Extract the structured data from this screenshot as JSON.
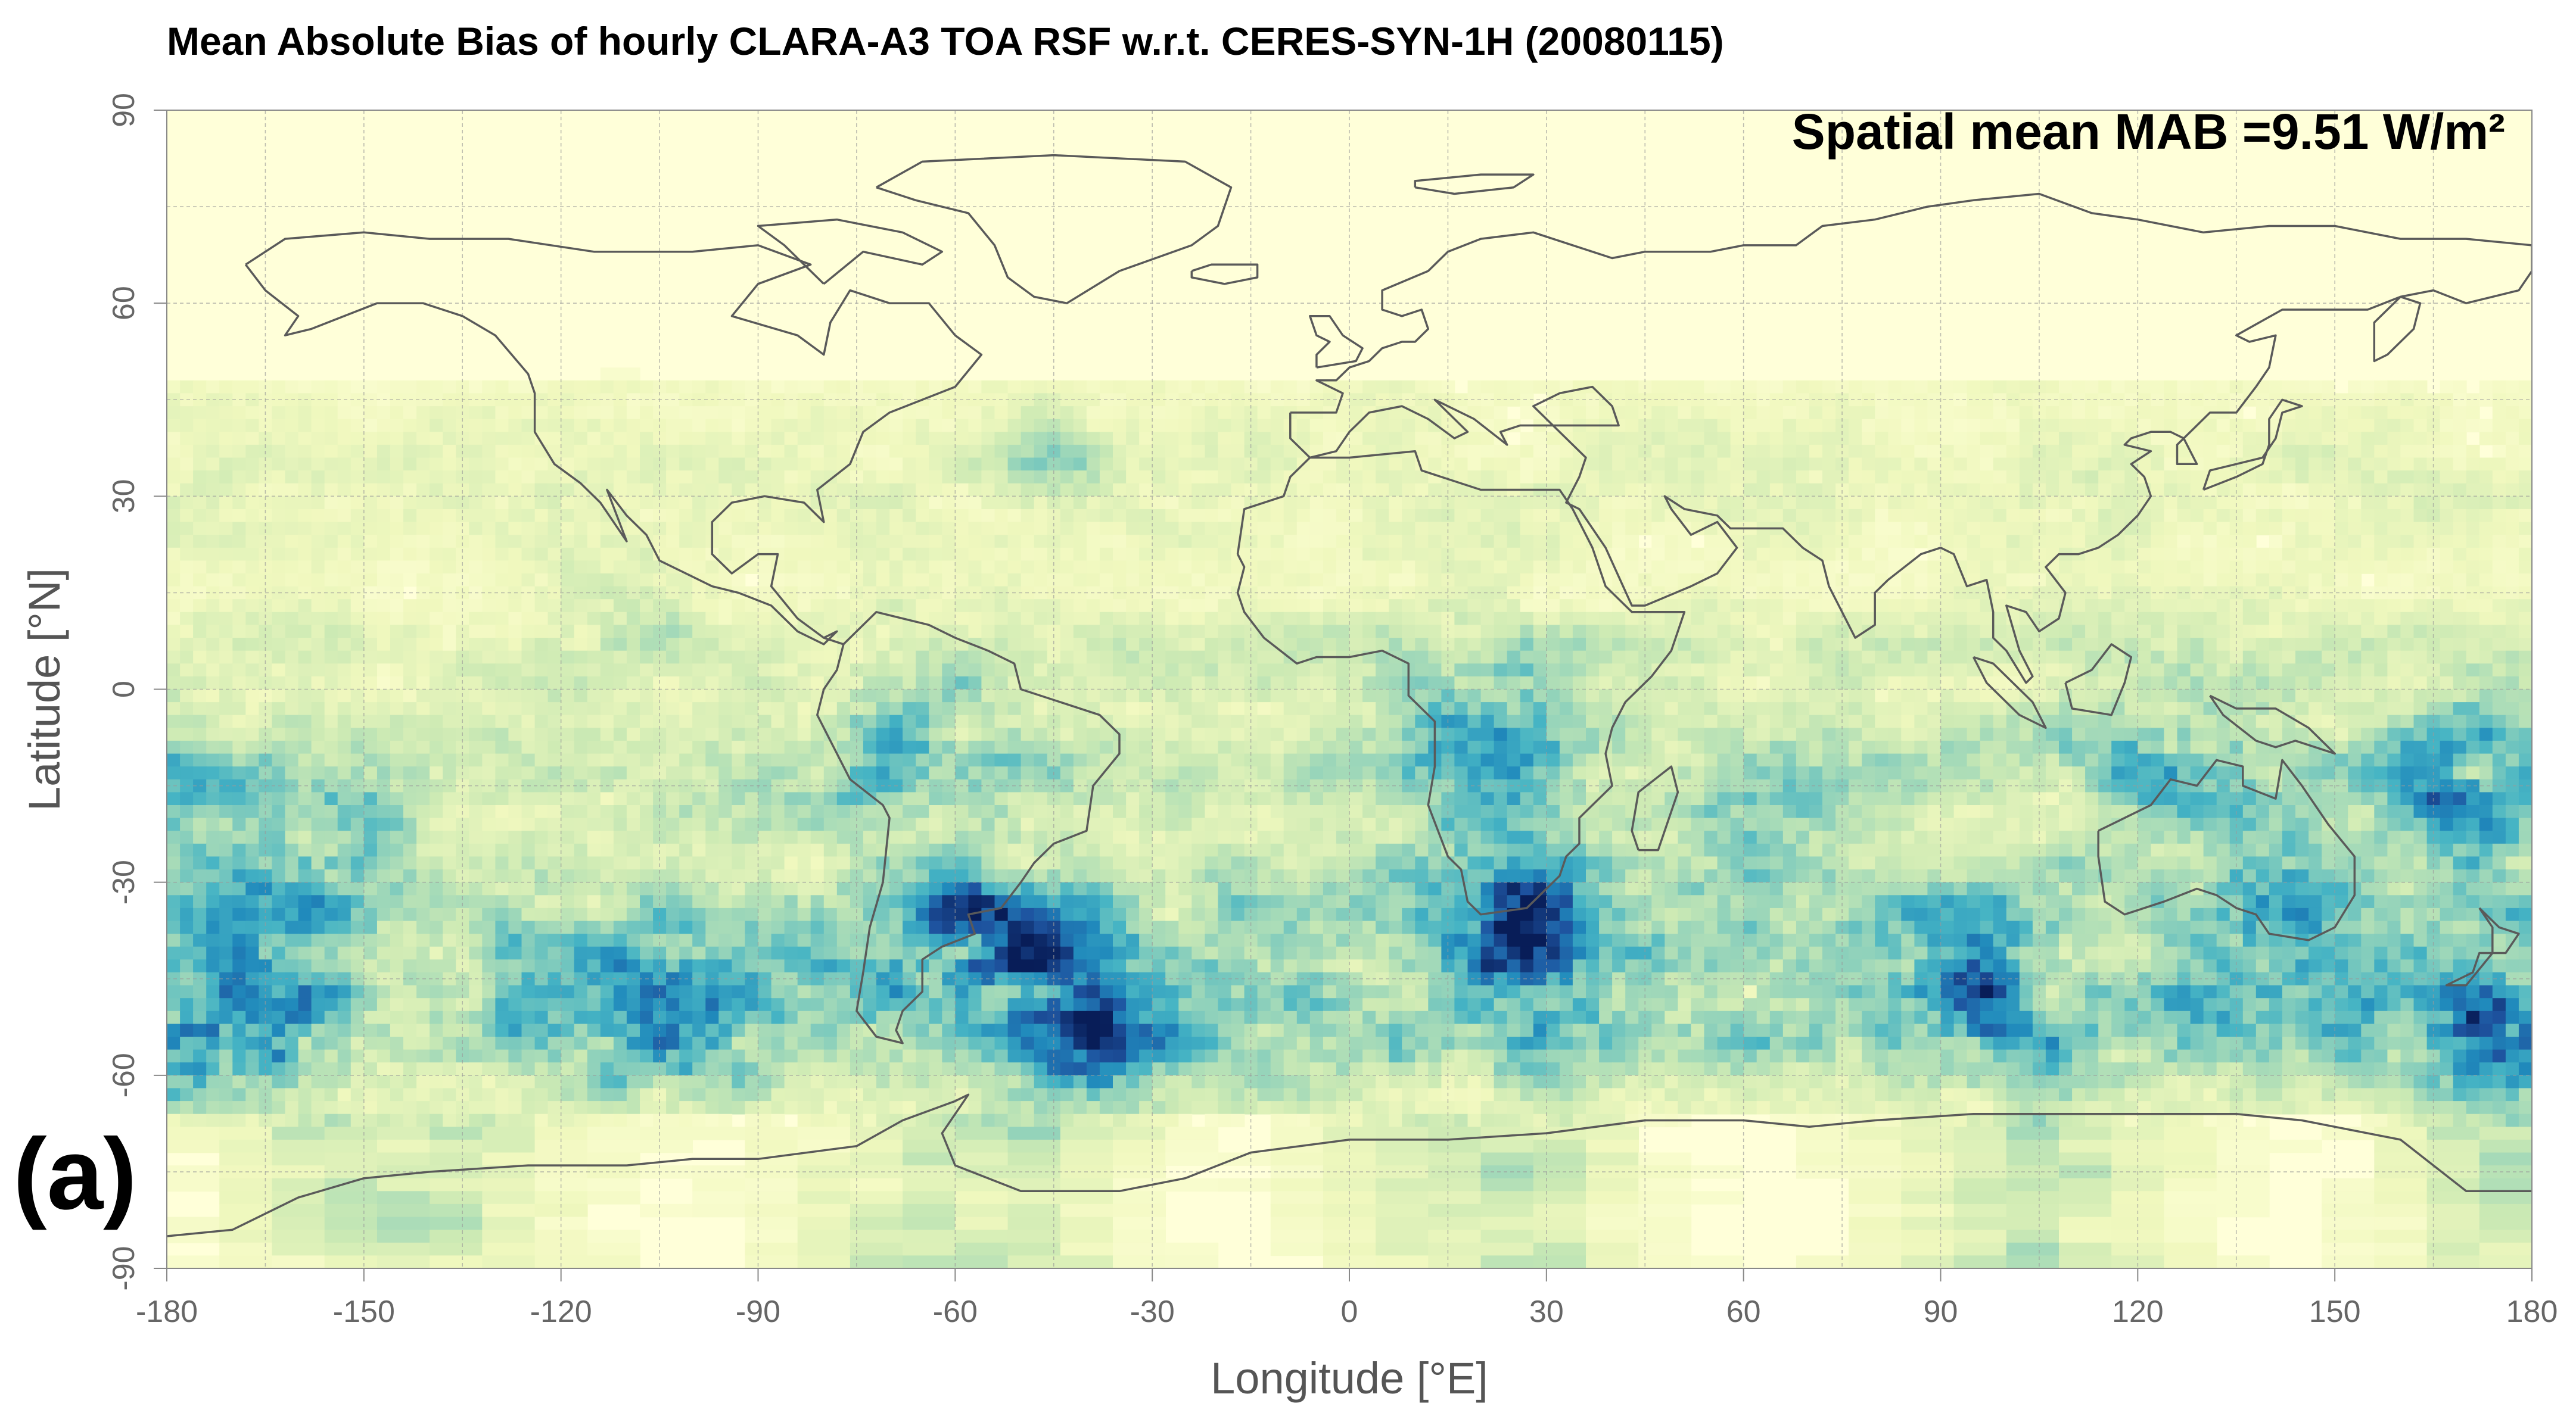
{
  "chart_data": {
    "type": "heatmap",
    "title": "Mean Absolute Bias of hourly CLARA-A3 TOA RSF w.r.t. CERES-SYN-1H (20080115)",
    "xlabel": "Longitude [°E]",
    "ylabel": "Latitude [°N]",
    "xlim": [
      -180,
      180
    ],
    "ylim": [
      -90,
      90
    ],
    "x_ticks": [
      -180,
      -150,
      -120,
      -90,
      -60,
      -30,
      0,
      30,
      60,
      90,
      120,
      150,
      180
    ],
    "y_ticks": [
      -90,
      -60,
      -30,
      0,
      30,
      60,
      90
    ],
    "annotation": "Spatial mean MAB =9.51 W/m²",
    "panel_label": "(a)",
    "grid": true,
    "colors": {
      "low": "#ffffd9",
      "mid": "#41b6c4",
      "high": "#081d58"
    }
  }
}
